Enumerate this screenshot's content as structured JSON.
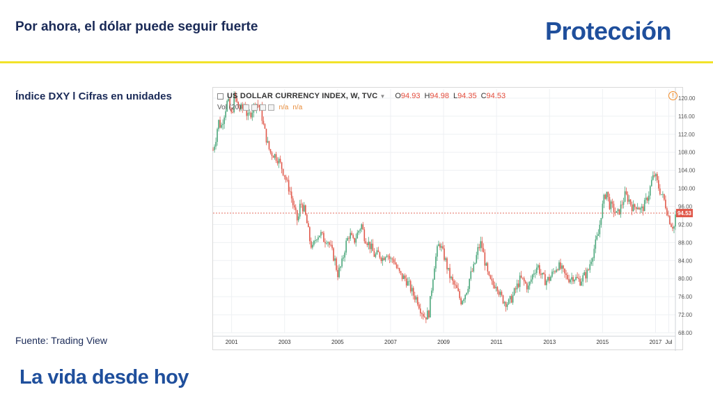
{
  "slide": {
    "title": "Por ahora, el dólar puede seguir fuerte",
    "brand": "Protección",
    "subtitle": "Índice DXY l Cifras en unidades",
    "source": "Fuente: Trading View",
    "tagline": "La vida desde hoy",
    "colors": {
      "navy": "#1a2a57",
      "brand_blue": "#1f4f9c",
      "accent_yellow": "#f2e22a"
    }
  },
  "legend": {
    "symbol": "US DOLLAR CURRENCY INDEX, W, TVC",
    "open_label": "O",
    "open": "94.93",
    "high_label": "H",
    "high": "94.98",
    "low_label": "L",
    "low": "94.35",
    "close_label": "C",
    "close": "94.53",
    "vol_label": "Vol (20)",
    "na1": "n/a",
    "na2": "n/a",
    "alert_icon": "!"
  },
  "chart_data": {
    "type": "line",
    "x_unit": "year",
    "ylim": [
      68,
      122
    ],
    "xlim": [
      2000.3,
      2017.75
    ],
    "y_ticks": [
      "68.00",
      "72.00",
      "76.00",
      "80.00",
      "84.00",
      "88.00",
      "92.00",
      "96.00",
      "100.00",
      "104.00",
      "108.00",
      "112.00",
      "116.00",
      "120.00"
    ],
    "x_ticks": [
      {
        "x": 2001,
        "label": "2001"
      },
      {
        "x": 2003,
        "label": "2003"
      },
      {
        "x": 2005,
        "label": "2005"
      },
      {
        "x": 2007,
        "label": "2007"
      },
      {
        "x": 2009,
        "label": "2009"
      },
      {
        "x": 2011,
        "label": "2011"
      },
      {
        "x": 2013,
        "label": "2013"
      },
      {
        "x": 2015,
        "label": "2015"
      },
      {
        "x": 2017,
        "label": "2017"
      },
      {
        "x": 2017.5,
        "label": "Jul"
      }
    ],
    "last_price": 94.53,
    "last_price_label": "94.53",
    "colors": {
      "up": "#4aa67a",
      "down": "#e0584a",
      "price_line": "#e0584a"
    },
    "series": [
      {
        "x": [
          2000.3,
          2000.4,
          2000.5,
          2000.6,
          2000.7,
          2000.85,
          2001.0,
          2001.1,
          2001.25,
          2001.4,
          2001.5,
          2001.6,
          2001.75,
          2001.9,
          2002.0,
          2002.1,
          2002.2,
          2002.35,
          2002.45,
          2002.6,
          2002.75,
          2002.9,
          2003.0,
          2003.1,
          2003.2,
          2003.35,
          2003.5,
          2003.6,
          2003.75,
          2003.85,
          2003.95,
          2004.05,
          2004.2,
          2004.35,
          2004.5,
          2004.6,
          2004.75,
          2004.9,
          2005.0,
          2005.15,
          2005.3,
          2005.45,
          2005.6,
          2005.75,
          2005.9,
          2006.0,
          2006.1,
          2006.25,
          2006.4,
          2006.55,
          2006.7,
          2006.85,
          2007.0,
          2007.1,
          2007.25,
          2007.4,
          2007.55,
          2007.7,
          2007.85,
          2008.0,
          2008.15,
          2008.3,
          2008.45,
          2008.55,
          2008.65,
          2008.75,
          2008.85,
          2008.95,
          2009.05,
          2009.2,
          2009.35,
          2009.5,
          2009.65,
          2009.8,
          2009.9,
          2010.0,
          2010.15,
          2010.3,
          2010.42,
          2010.55,
          2010.7,
          2010.85,
          2011.0,
          2011.15,
          2011.3,
          2011.45,
          2011.6,
          2011.75,
          2011.9,
          2012.0,
          2012.2,
          2012.4,
          2012.55,
          2012.7,
          2012.85,
          2013.0,
          2013.15,
          2013.3,
          2013.45,
          2013.6,
          2013.75,
          2013.9,
          2014.0,
          2014.15,
          2014.3,
          2014.45,
          2014.55,
          2014.65,
          2014.75,
          2014.85,
          2014.95,
          2015.05,
          2015.15,
          2015.25,
          2015.4,
          2015.55,
          2015.7,
          2015.85,
          2016.0,
          2016.15,
          2016.3,
          2016.45,
          2016.6,
          2016.75,
          2016.85,
          2016.95,
          2017.0,
          2017.1,
          2017.2,
          2017.35,
          2017.5,
          2017.6,
          2017.7,
          2017.75
        ],
        "values": [
          108.5,
          111.0,
          115.0,
          113.5,
          116.0,
          119.5,
          116.0,
          120.5,
          118.0,
          117.5,
          119.0,
          115.5,
          117.0,
          119.0,
          118.5,
          117.5,
          114.0,
          110.0,
          108.0,
          107.5,
          106.5,
          104.5,
          103.0,
          101.0,
          99.5,
          95.5,
          92.5,
          97.0,
          95.0,
          92.0,
          88.5,
          86.5,
          89.5,
          90.0,
          88.5,
          89.0,
          86.5,
          84.0,
          81.0,
          83.0,
          87.5,
          90.0,
          88.0,
          90.0,
          92.0,
          89.5,
          88.5,
          87.0,
          85.0,
          85.5,
          84.5,
          86.0,
          84.0,
          84.5,
          82.0,
          80.5,
          80.0,
          78.5,
          76.5,
          75.5,
          73.0,
          71.5,
          72.5,
          78.0,
          83.0,
          86.0,
          88.0,
          86.0,
          84.5,
          81.0,
          79.0,
          77.5,
          75.0,
          76.5,
          78.0,
          80.5,
          82.5,
          86.5,
          88.0,
          84.0,
          80.0,
          78.5,
          79.0,
          76.0,
          75.0,
          74.5,
          76.0,
          78.0,
          80.0,
          79.5,
          78.0,
          81.5,
          83.0,
          80.5,
          79.5,
          80.0,
          81.5,
          83.0,
          82.0,
          80.5,
          80.0,
          80.5,
          80.0,
          79.5,
          80.5,
          81.5,
          84.0,
          86.0,
          88.0,
          90.0,
          94.5,
          97.5,
          99.5,
          96.5,
          95.5,
          94.0,
          96.0,
          98.5,
          97.5,
          95.5,
          96.5,
          95.0,
          96.5,
          99.0,
          101.5,
          103.0,
          102.5,
          100.5,
          99.0,
          97.0,
          93.5,
          92.0,
          91.5,
          94.0
        ]
      }
    ]
  }
}
